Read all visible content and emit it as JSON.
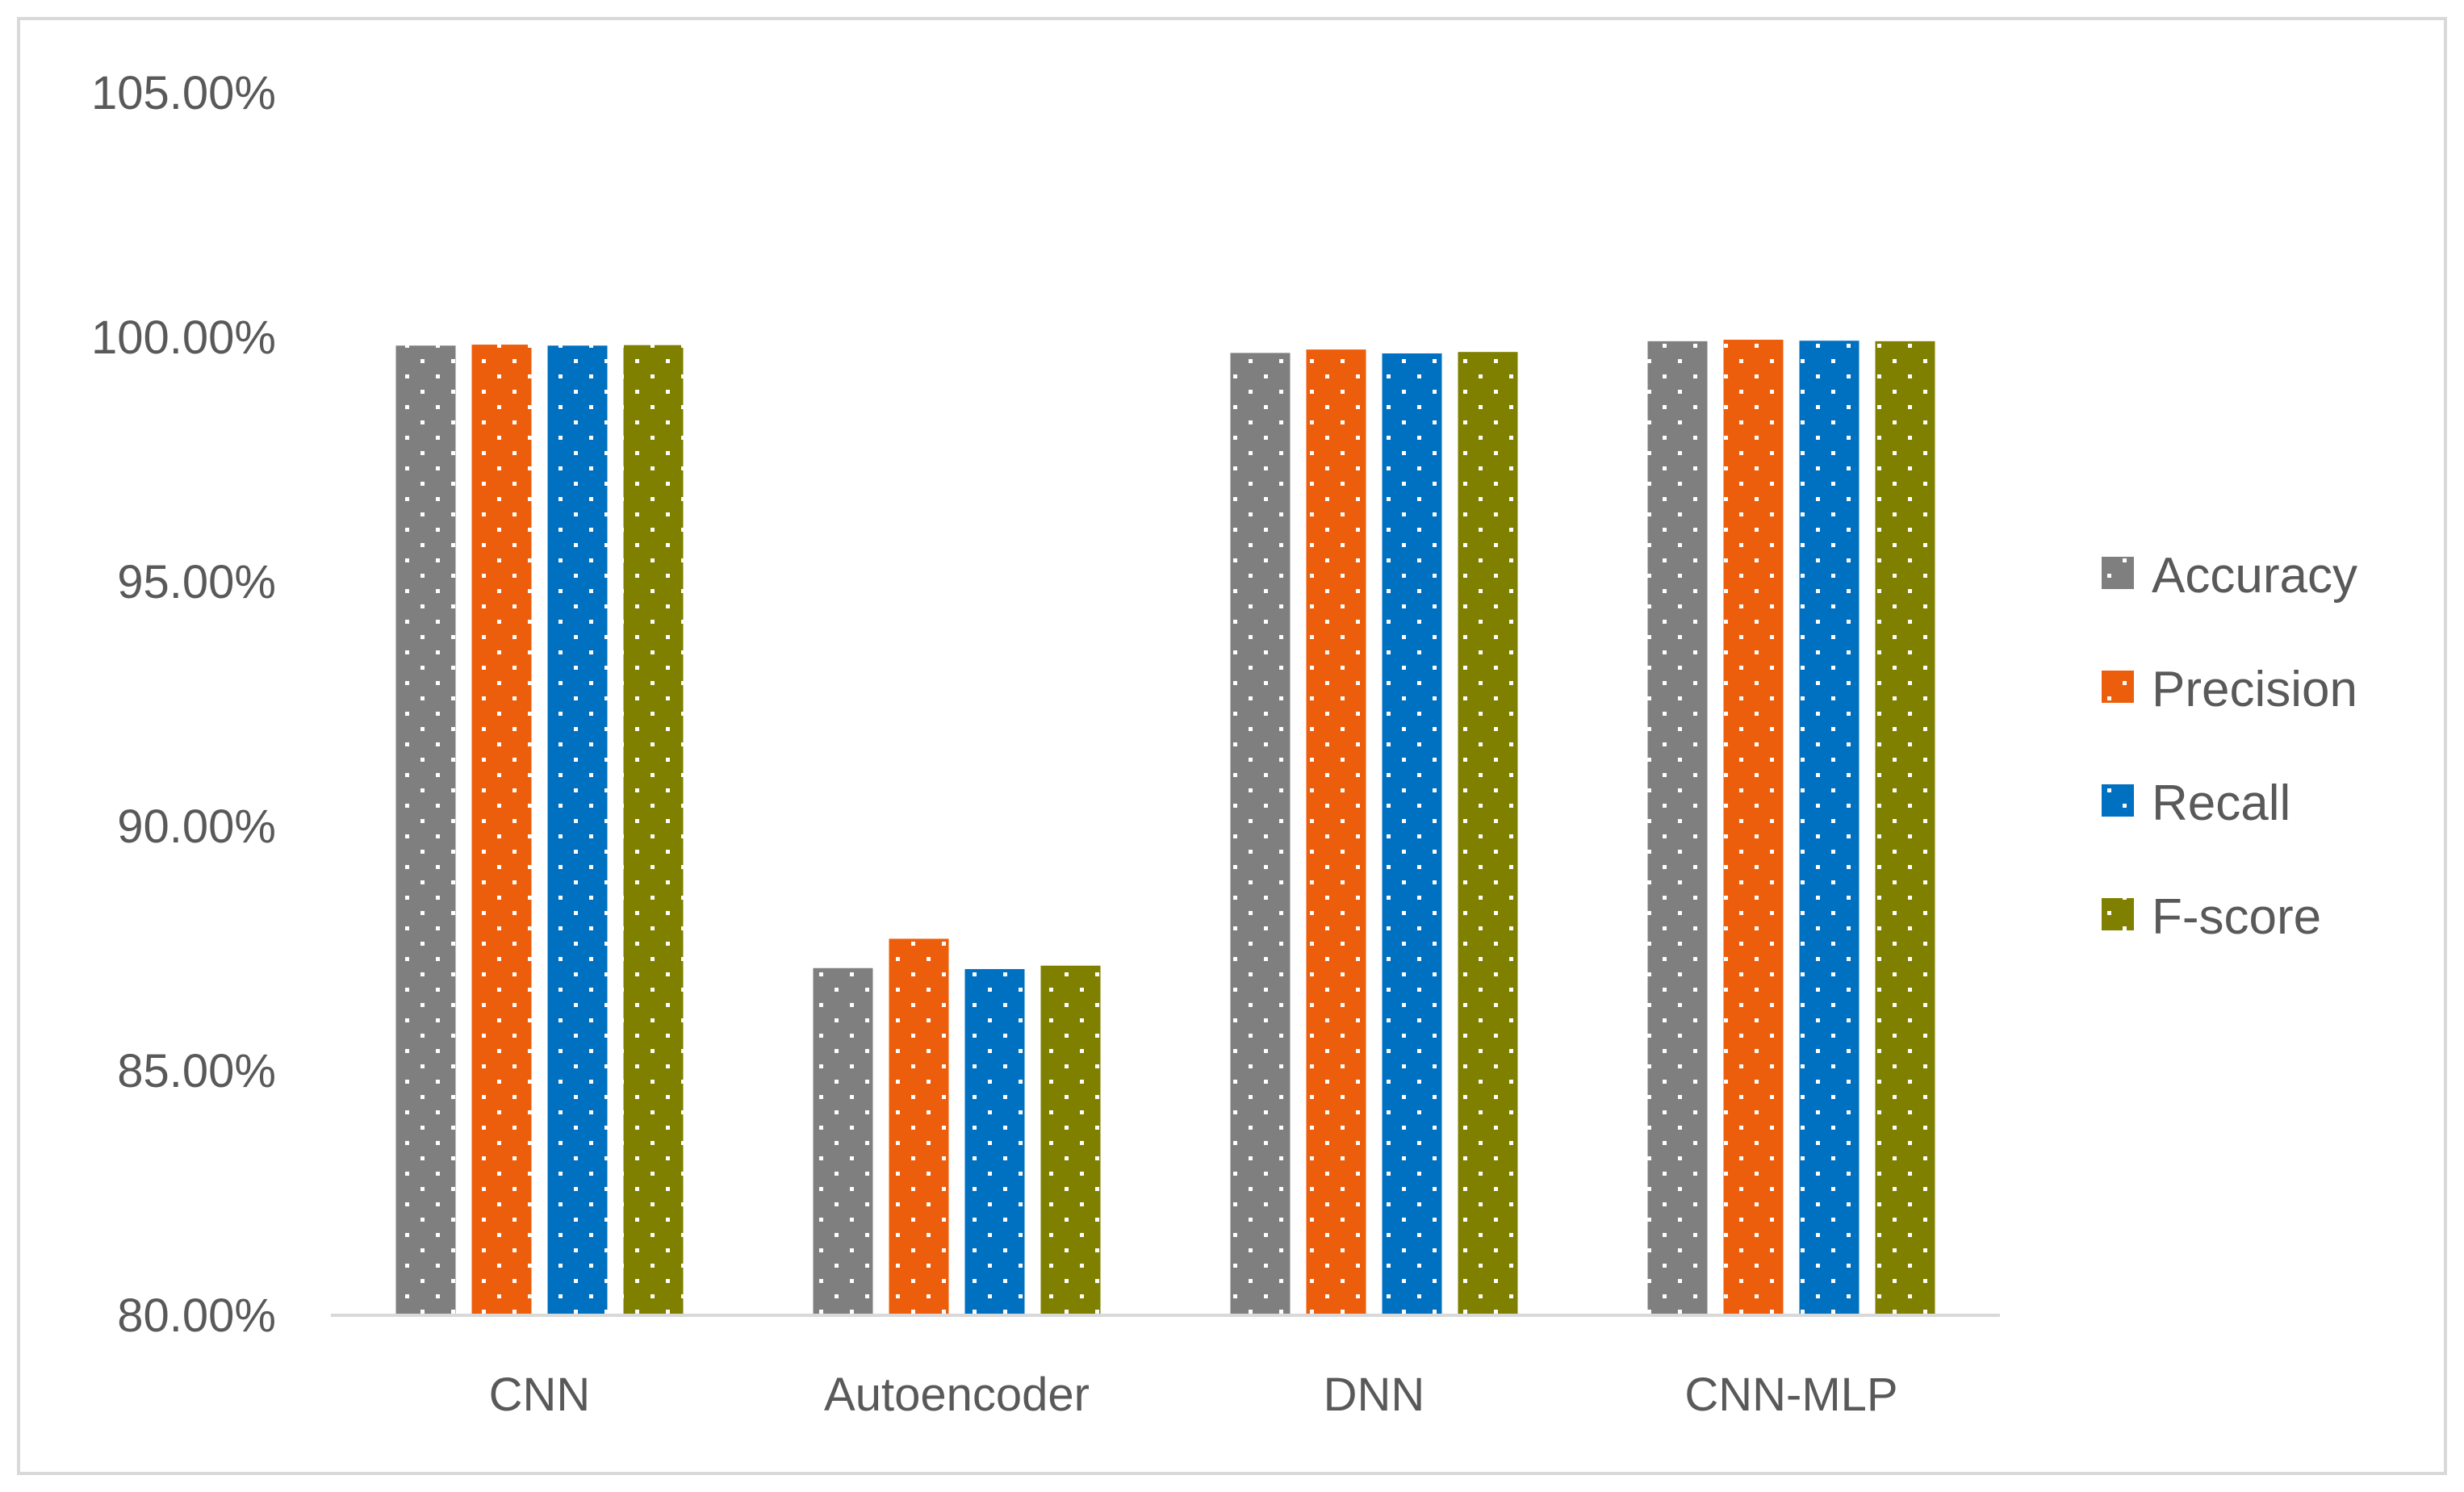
{
  "chart_data": {
    "type": "bar",
    "title": "",
    "xlabel": "",
    "ylabel": "",
    "categories": [
      "CNN",
      "Autoencoder",
      "DNN",
      "CNN-MLP"
    ],
    "series": [
      {
        "name": "Accuracy",
        "color": "#7f7f7f",
        "values": [
          99.83,
          87.1,
          99.68,
          99.92
        ]
      },
      {
        "name": "Precision",
        "color": "#ed5e0c",
        "values": [
          99.85,
          87.7,
          99.75,
          99.95
        ]
      },
      {
        "name": "Recall",
        "color": "#0070c0",
        "values": [
          99.83,
          87.08,
          99.67,
          99.93
        ]
      },
      {
        "name": "F-score",
        "color": "#7f7f00",
        "values": [
          99.84,
          87.15,
          99.7,
          99.92
        ]
      }
    ],
    "ylim": [
      80,
      105
    ],
    "yticks": [
      80,
      85,
      90,
      95,
      100,
      105
    ],
    "ytick_labels": [
      "80.00%",
      "85.00%",
      "90.00%",
      "95.00%",
      "100.00%",
      "105.00%"
    ],
    "bar_pattern": "white-dots",
    "grid": false,
    "legend_position": "right"
  }
}
